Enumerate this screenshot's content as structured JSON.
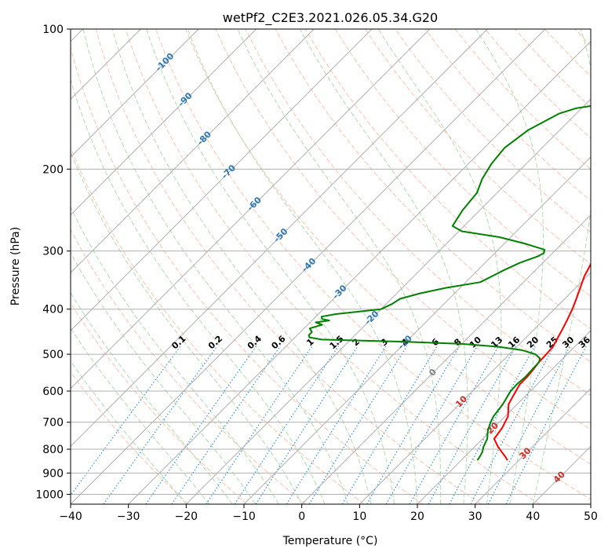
{
  "chart_data": {
    "type": "line",
    "title": "wetPf2_C2E3.2021.026.05.34.G20",
    "xlabel": "Temperature (°C)",
    "ylabel": "Pressure (hPa)",
    "xlim": [
      -40,
      50
    ],
    "ylim": [
      1050,
      100
    ],
    "y_scale": "log",
    "grid": true,
    "x_ticks": [
      "−40",
      "−30",
      "−20",
      "−10",
      "0",
      "10",
      "20",
      "30",
      "40",
      "50"
    ],
    "y_ticks": [
      "100",
      "200",
      "300",
      "400",
      "500",
      "600",
      "700",
      "800",
      "900",
      "1000"
    ],
    "colors": {
      "temperature": "#ff0000",
      "dewpoint": "#008000",
      "dry_adiabats": "#ffad93",
      "moist_adiabats": "#a8d8a8",
      "mixing_ratio": "#1e88e5",
      "isotherm_labels": "#2e78b8",
      "isotherm_labels_warm": "#d62728"
    },
    "series": [
      {
        "key": "temperature",
        "points": [
          [
            100,
            1.0
          ],
          [
            115,
            0.5
          ],
          [
            120,
            0.5
          ],
          [
            150,
            1.2
          ],
          [
            170,
            1.4
          ],
          [
            190,
            1.6
          ],
          [
            205,
            2.0
          ],
          [
            220,
            3.0
          ],
          [
            240,
            5.2
          ],
          [
            255,
            6.9
          ],
          [
            265,
            7.2
          ],
          [
            280,
            7.2
          ],
          [
            300,
            7.5
          ],
          [
            320,
            8.5
          ],
          [
            340,
            9.5
          ],
          [
            360,
            10.8
          ],
          [
            380,
            12.0
          ],
          [
            400,
            13.1
          ],
          [
            420,
            14.0
          ],
          [
            440,
            14.8
          ],
          [
            460,
            15.5
          ],
          [
            480,
            16.2
          ],
          [
            500,
            16.4
          ],
          [
            520,
            16.5
          ],
          [
            540,
            16.8
          ],
          [
            560,
            17.0
          ],
          [
            580,
            17.0
          ],
          [
            600,
            17.5
          ],
          [
            640,
            18.5
          ],
          [
            680,
            20.5
          ],
          [
            720,
            21.5
          ],
          [
            760,
            22.0
          ],
          [
            790,
            24.0
          ],
          [
            810,
            25.5
          ],
          [
            830,
            27.0
          ],
          [
            845,
            28.0
          ]
        ]
      },
      {
        "key": "dewpoint",
        "points": [
          [
            100,
            1.0
          ],
          [
            110,
            0.8
          ],
          [
            115,
            0.5
          ],
          [
            120,
            0.5
          ],
          [
            130,
            -2.0
          ],
          [
            138,
            -3.5
          ],
          [
            145,
            -17.0
          ],
          [
            148,
            -21.0
          ],
          [
            152,
            -23.0
          ],
          [
            165,
            -25.5
          ],
          [
            180,
            -26.5
          ],
          [
            195,
            -26.0
          ],
          [
            210,
            -25.0
          ],
          [
            225,
            -23.5
          ],
          [
            245,
            -23.0
          ],
          [
            265,
            -22.0
          ],
          [
            272,
            -19.5
          ],
          [
            280,
            -12.0
          ],
          [
            290,
            -6.0
          ],
          [
            298,
            -2.0
          ],
          [
            303,
            -1.5
          ],
          [
            308,
            -2.0
          ],
          [
            318,
            -4.0
          ],
          [
            330,
            -5.5
          ],
          [
            340,
            -6.5
          ],
          [
            350,
            -7.5
          ],
          [
            360,
            -12.5
          ],
          [
            370,
            -16.0
          ],
          [
            380,
            -18.5
          ],
          [
            390,
            -19.0
          ],
          [
            400,
            -20.0
          ],
          [
            410,
            -27.0
          ],
          [
            415,
            -29.0
          ],
          [
            420,
            -28.5
          ],
          [
            423,
            -27.0
          ],
          [
            427,
            -29.0
          ],
          [
            432,
            -27.5
          ],
          [
            440,
            -29.0
          ],
          [
            448,
            -28.0
          ],
          [
            455,
            -28.0
          ],
          [
            460,
            -27.5
          ],
          [
            465,
            -25.0
          ],
          [
            470,
            -10.0
          ],
          [
            475,
            0.0
          ],
          [
            482,
            7.0
          ],
          [
            490,
            11.5
          ],
          [
            500,
            14.5
          ],
          [
            510,
            16.0
          ],
          [
            520,
            16.5
          ],
          [
            540,
            16.6
          ],
          [
            560,
            16.7
          ],
          [
            580,
            16.5
          ],
          [
            600,
            16.6
          ],
          [
            640,
            17.5
          ],
          [
            680,
            18.0
          ],
          [
            700,
            18.5
          ],
          [
            730,
            19.5
          ],
          [
            760,
            20.8
          ],
          [
            790,
            21.5
          ],
          [
            810,
            22.2
          ],
          [
            830,
            22.6
          ],
          [
            845,
            22.8
          ]
        ]
      }
    ],
    "isotherm_labels": [
      {
        "t": -100,
        "p": 118,
        "text": "-100"
      },
      {
        "t": -90,
        "p": 142,
        "text": "-90"
      },
      {
        "t": -80,
        "p": 172,
        "text": "-80"
      },
      {
        "t": -70,
        "p": 203,
        "text": "-70"
      },
      {
        "t": -60,
        "p": 238,
        "text": "-60"
      },
      {
        "t": -50,
        "p": 278,
        "text": "-50"
      },
      {
        "t": -40,
        "p": 322,
        "text": "-40"
      },
      {
        "t": -30,
        "p": 368,
        "text": "-30"
      },
      {
        "t": -20,
        "p": 418,
        "text": "-20"
      },
      {
        "t": -10,
        "p": 472,
        "text": "-10"
      },
      {
        "t": 0,
        "p": 548,
        "text": "0"
      },
      {
        "t": 10,
        "p": 633,
        "text": "10"
      },
      {
        "t": 20,
        "p": 722,
        "text": "20"
      },
      {
        "t": 30,
        "p": 818,
        "text": "30"
      },
      {
        "t": 40,
        "p": 920,
        "text": "40"
      }
    ],
    "mixing_ratio_labels": [
      "0.1",
      "0.2",
      "0.4",
      "0.6",
      "1",
      "1.5",
      "2",
      "3",
      "4",
      "6",
      "8",
      "10",
      "13",
      "16",
      "20",
      "25",
      "30",
      "36"
    ]
  }
}
